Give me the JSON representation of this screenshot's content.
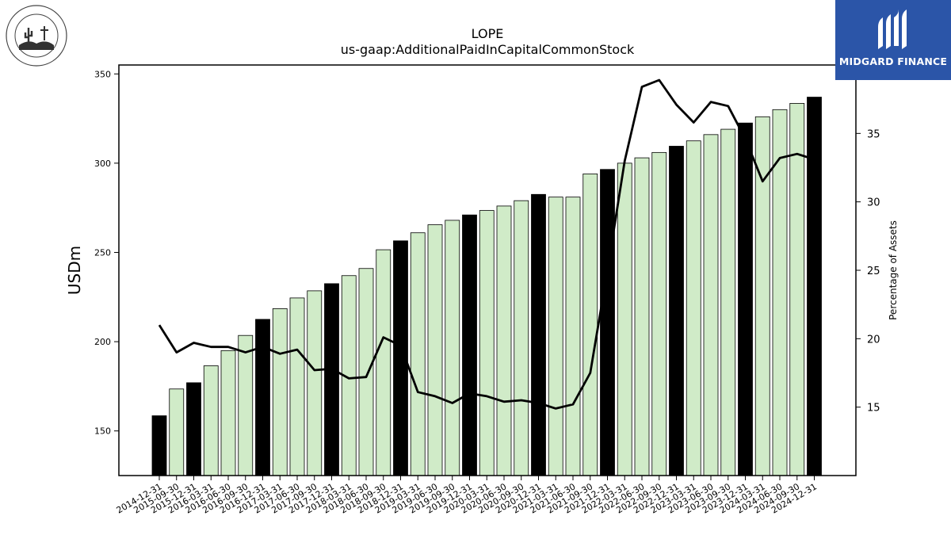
{
  "chart_data": {
    "type": "bar",
    "title": "LOPE",
    "subtitle": "us-gaap:AdditionalPaidInCapitalCommonStock",
    "ylabel": "USDm",
    "ylabel_right": "Percentage of Assets",
    "ylim": [
      125,
      355
    ],
    "ylim_right": [
      10,
      40
    ],
    "yticks": [
      150,
      200,
      250,
      300,
      350
    ],
    "yticks_right": [
      15,
      20,
      25,
      30,
      35
    ],
    "categories": [
      "2014-12-31",
      "2015-09-30",
      "2015-12-31",
      "2016-03-31",
      "2016-06-30",
      "2016-09-30",
      "2016-12-31",
      "2017-03-31",
      "2017-06-30",
      "2017-09-30",
      "2017-12-31",
      "2018-03-31",
      "2018-06-30",
      "2018-09-30",
      "2018-12-31",
      "2019-03-31",
      "2019-06-30",
      "2019-09-30",
      "2019-12-31",
      "2020-03-31",
      "2020-06-30",
      "2020-09-30",
      "2020-12-31",
      "2021-03-31",
      "2021-06-30",
      "2021-09-30",
      "2021-12-31",
      "2022-03-31",
      "2022-06-30",
      "2022-09-30",
      "2022-12-31",
      "2023-03-31",
      "2023-06-30",
      "2023-09-30",
      "2023-12-31",
      "2024-03-31",
      "2024-06-30",
      "2024-09-30",
      "2024-12-31"
    ],
    "series": [
      {
        "kind": "bar",
        "values": [
          158.5,
          173.5,
          177,
          186.5,
          195,
          203.5,
          212.5,
          218.5,
          224.5,
          228.5,
          232.5,
          237,
          241,
          251.5,
          256.5,
          261,
          265.5,
          268,
          271,
          273.5,
          276,
          279,
          282.5,
          281,
          281,
          294,
          296.5,
          300,
          303,
          306,
          309.5,
          312.5,
          316,
          319,
          322.5,
          326,
          330,
          333.5,
          337
        ],
        "highlight": [
          true,
          false,
          true,
          false,
          false,
          false,
          true,
          false,
          false,
          false,
          true,
          false,
          false,
          false,
          true,
          false,
          false,
          false,
          true,
          false,
          false,
          false,
          true,
          false,
          false,
          false,
          true,
          false,
          false,
          false,
          true,
          false,
          false,
          false,
          true,
          false,
          false,
          false,
          true
        ]
      },
      {
        "kind": "line",
        "axis": "right",
        "values": [
          21,
          19,
          19.7,
          19.4,
          19.4,
          19,
          19.4,
          18.9,
          19.2,
          17.7,
          17.8,
          17.1,
          17.2,
          20.1,
          19.5,
          16.1,
          15.8,
          15.3,
          16,
          15.8,
          15.4,
          15.5,
          15.3,
          14.9,
          15.2,
          17.5,
          25,
          33,
          38.4,
          38.9,
          37.1,
          35.8,
          37.3,
          37,
          34.6,
          31.5,
          33.2,
          33.5,
          33.1
        ]
      }
    ],
    "colors": {
      "bar_highlight": "#000000",
      "bar_normal": "#d0ebc8",
      "bar_edge": "#000000",
      "line": "#000000"
    }
  },
  "logos": {
    "left_text": "GRAND CANYON UNIVERSITY",
    "left_subtext": "ARIZONA 1949",
    "right_text": "MIDGARD FINANCE"
  }
}
